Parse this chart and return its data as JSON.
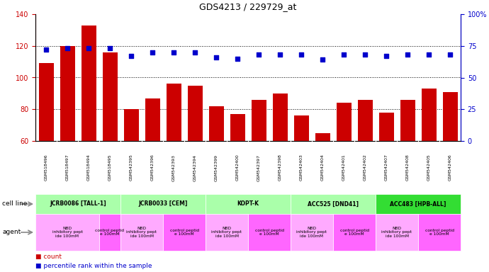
{
  "title": "GDS4213 / 229729_at",
  "samples": [
    "GSM518496",
    "GSM518497",
    "GSM518494",
    "GSM518495",
    "GSM542395",
    "GSM542396",
    "GSM542393",
    "GSM542394",
    "GSM542399",
    "GSM542400",
    "GSM542397",
    "GSM542398",
    "GSM542403",
    "GSM542404",
    "GSM542401",
    "GSM542402",
    "GSM542407",
    "GSM542408",
    "GSM542405",
    "GSM542406"
  ],
  "counts": [
    109,
    120,
    133,
    116,
    80,
    87,
    96,
    95,
    82,
    77,
    86,
    90,
    76,
    65,
    84,
    86,
    78,
    86,
    93,
    91
  ],
  "percentiles": [
    72,
    73,
    73,
    73,
    67,
    70,
    70,
    70,
    66,
    65,
    68,
    68,
    68,
    64,
    68,
    68,
    67,
    68,
    68,
    68
  ],
  "bar_color": "#cc0000",
  "dot_color": "#0000cc",
  "ylim_left": [
    60,
    140
  ],
  "ylim_right": [
    0,
    100
  ],
  "yticks_left": [
    60,
    80,
    100,
    120,
    140
  ],
  "yticks_right": [
    0,
    25,
    50,
    75,
    100
  ],
  "ytick_right_labels": [
    "0",
    "25",
    "50",
    "75",
    "100%"
  ],
  "cell_lines": [
    {
      "label": "JCRB0086 [TALL-1]",
      "start": 0,
      "end": 4,
      "color": "#aaffaa"
    },
    {
      "label": "JCRB0033 [CEM]",
      "start": 4,
      "end": 8,
      "color": "#aaffaa"
    },
    {
      "label": "KOPT-K",
      "start": 8,
      "end": 12,
      "color": "#aaffaa"
    },
    {
      "label": "ACC525 [DND41]",
      "start": 12,
      "end": 16,
      "color": "#aaffaa"
    },
    {
      "label": "ACC483 [HPB-ALL]",
      "start": 16,
      "end": 20,
      "color": "#33dd33"
    }
  ],
  "agents": [
    {
      "label": "NBD\ninhibitory pept\nide 100mM",
      "start": 0,
      "end": 3,
      "color": "#ffaaff"
    },
    {
      "label": "control peptid\ne 100mM",
      "start": 3,
      "end": 4,
      "color": "#ff66ff"
    },
    {
      "label": "NBD\ninhibitory pept\nide 100mM",
      "start": 4,
      "end": 6,
      "color": "#ffaaff"
    },
    {
      "label": "control peptid\ne 100mM",
      "start": 6,
      "end": 8,
      "color": "#ff66ff"
    },
    {
      "label": "NBD\ninhibitory pept\nide 100mM",
      "start": 8,
      "end": 10,
      "color": "#ffaaff"
    },
    {
      "label": "control peptid\ne 100mM",
      "start": 10,
      "end": 12,
      "color": "#ff66ff"
    },
    {
      "label": "NBD\ninhibitory pept\nide 100mM",
      "start": 12,
      "end": 14,
      "color": "#ffaaff"
    },
    {
      "label": "control peptid\ne 100mM",
      "start": 14,
      "end": 16,
      "color": "#ff66ff"
    },
    {
      "label": "NBD\ninhibitory pept\nide 100mM",
      "start": 16,
      "end": 18,
      "color": "#ffaaff"
    },
    {
      "label": "control peptid\ne 100mM",
      "start": 18,
      "end": 20,
      "color": "#ff66ff"
    }
  ],
  "legend_count_color": "#cc0000",
  "legend_pct_color": "#0000cc",
  "bg_color": "#ffffff",
  "grid_color": "#000000",
  "tick_color_left": "#cc0000",
  "tick_color_right": "#0000cc",
  "sample_bg_color": "#cccccc",
  "chart_bg_color": "#ffffff"
}
